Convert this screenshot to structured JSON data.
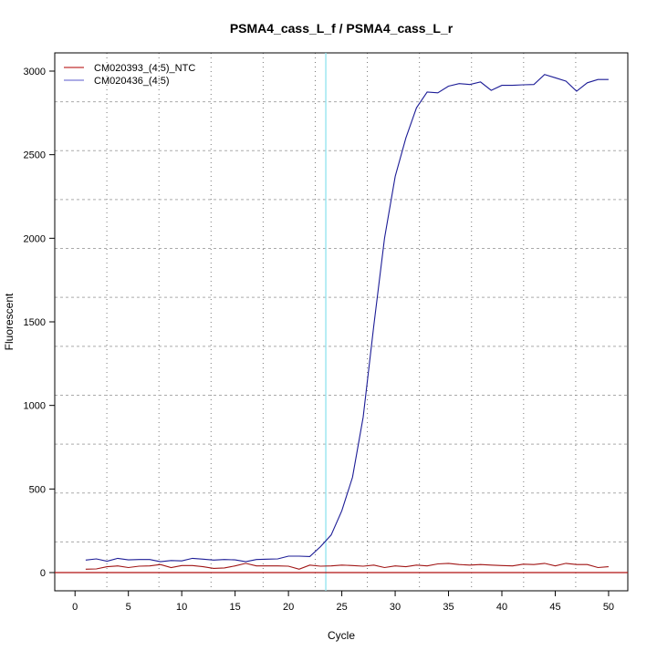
{
  "chart_data": {
    "type": "line",
    "title": "PSMA4_cass_L_f / PSMA4_cass_L_r",
    "xlabel": "Cycle",
    "ylabel": "Fluorescent",
    "xlim": [
      -1.9,
      51.8
    ],
    "ylim": [
      -109,
      3109
    ],
    "xticks": [
      0,
      5,
      10,
      15,
      20,
      25,
      30,
      35,
      40,
      45,
      50
    ],
    "yticks": [
      0,
      500,
      1000,
      1500,
      2000,
      2500,
      3000
    ],
    "grid": true,
    "legend_position": "top-left",
    "x": [
      1,
      2,
      3,
      4,
      5,
      6,
      7,
      8,
      9,
      10,
      11,
      12,
      13,
      14,
      15,
      16,
      17,
      18,
      19,
      20,
      21,
      22,
      23,
      24,
      25,
      26,
      27,
      28,
      29,
      30,
      31,
      32,
      33,
      34,
      35,
      36,
      37,
      38,
      39,
      40,
      41,
      42,
      43,
      44,
      45,
      46,
      47,
      48,
      49,
      50
    ],
    "series": [
      {
        "name": "CM020393_(4:5)_NTC",
        "color": "#a01414",
        "legend_color": "#c03030",
        "values": [
          20,
          22,
          35,
          40,
          30,
          38,
          40,
          48,
          30,
          42,
          42,
          35,
          25,
          28,
          40,
          55,
          40,
          40,
          40,
          38,
          20,
          45,
          38,
          40,
          45,
          42,
          38,
          45,
          30,
          40,
          35,
          45,
          40,
          52,
          55,
          48,
          45,
          48,
          45,
          42,
          40,
          50,
          48,
          55,
          40,
          55,
          48,
          48,
          30,
          35
        ]
      },
      {
        "name": "CM020436_(4:5)",
        "color": "#1c1c96",
        "legend_color": "#7a7ad8",
        "values": [
          75,
          82,
          68,
          85,
          76,
          78,
          78,
          65,
          72,
          70,
          85,
          80,
          75,
          78,
          76,
          65,
          78,
          80,
          82,
          98,
          98,
          96,
          155,
          225,
          370,
          570,
          930,
          1480,
          2000,
          2370,
          2600,
          2780,
          2875,
          2870,
          2910,
          2925,
          2920,
          2935,
          2885,
          2915,
          2915,
          2918,
          2920,
          2980,
          2960,
          2940,
          2880,
          2930,
          2950,
          2950
        ]
      }
    ],
    "threshold": {
      "value": 0,
      "color": "#b01010"
    },
    "cycle_marker": {
      "value": 23.5,
      "color": "#8fe3ee"
    }
  }
}
